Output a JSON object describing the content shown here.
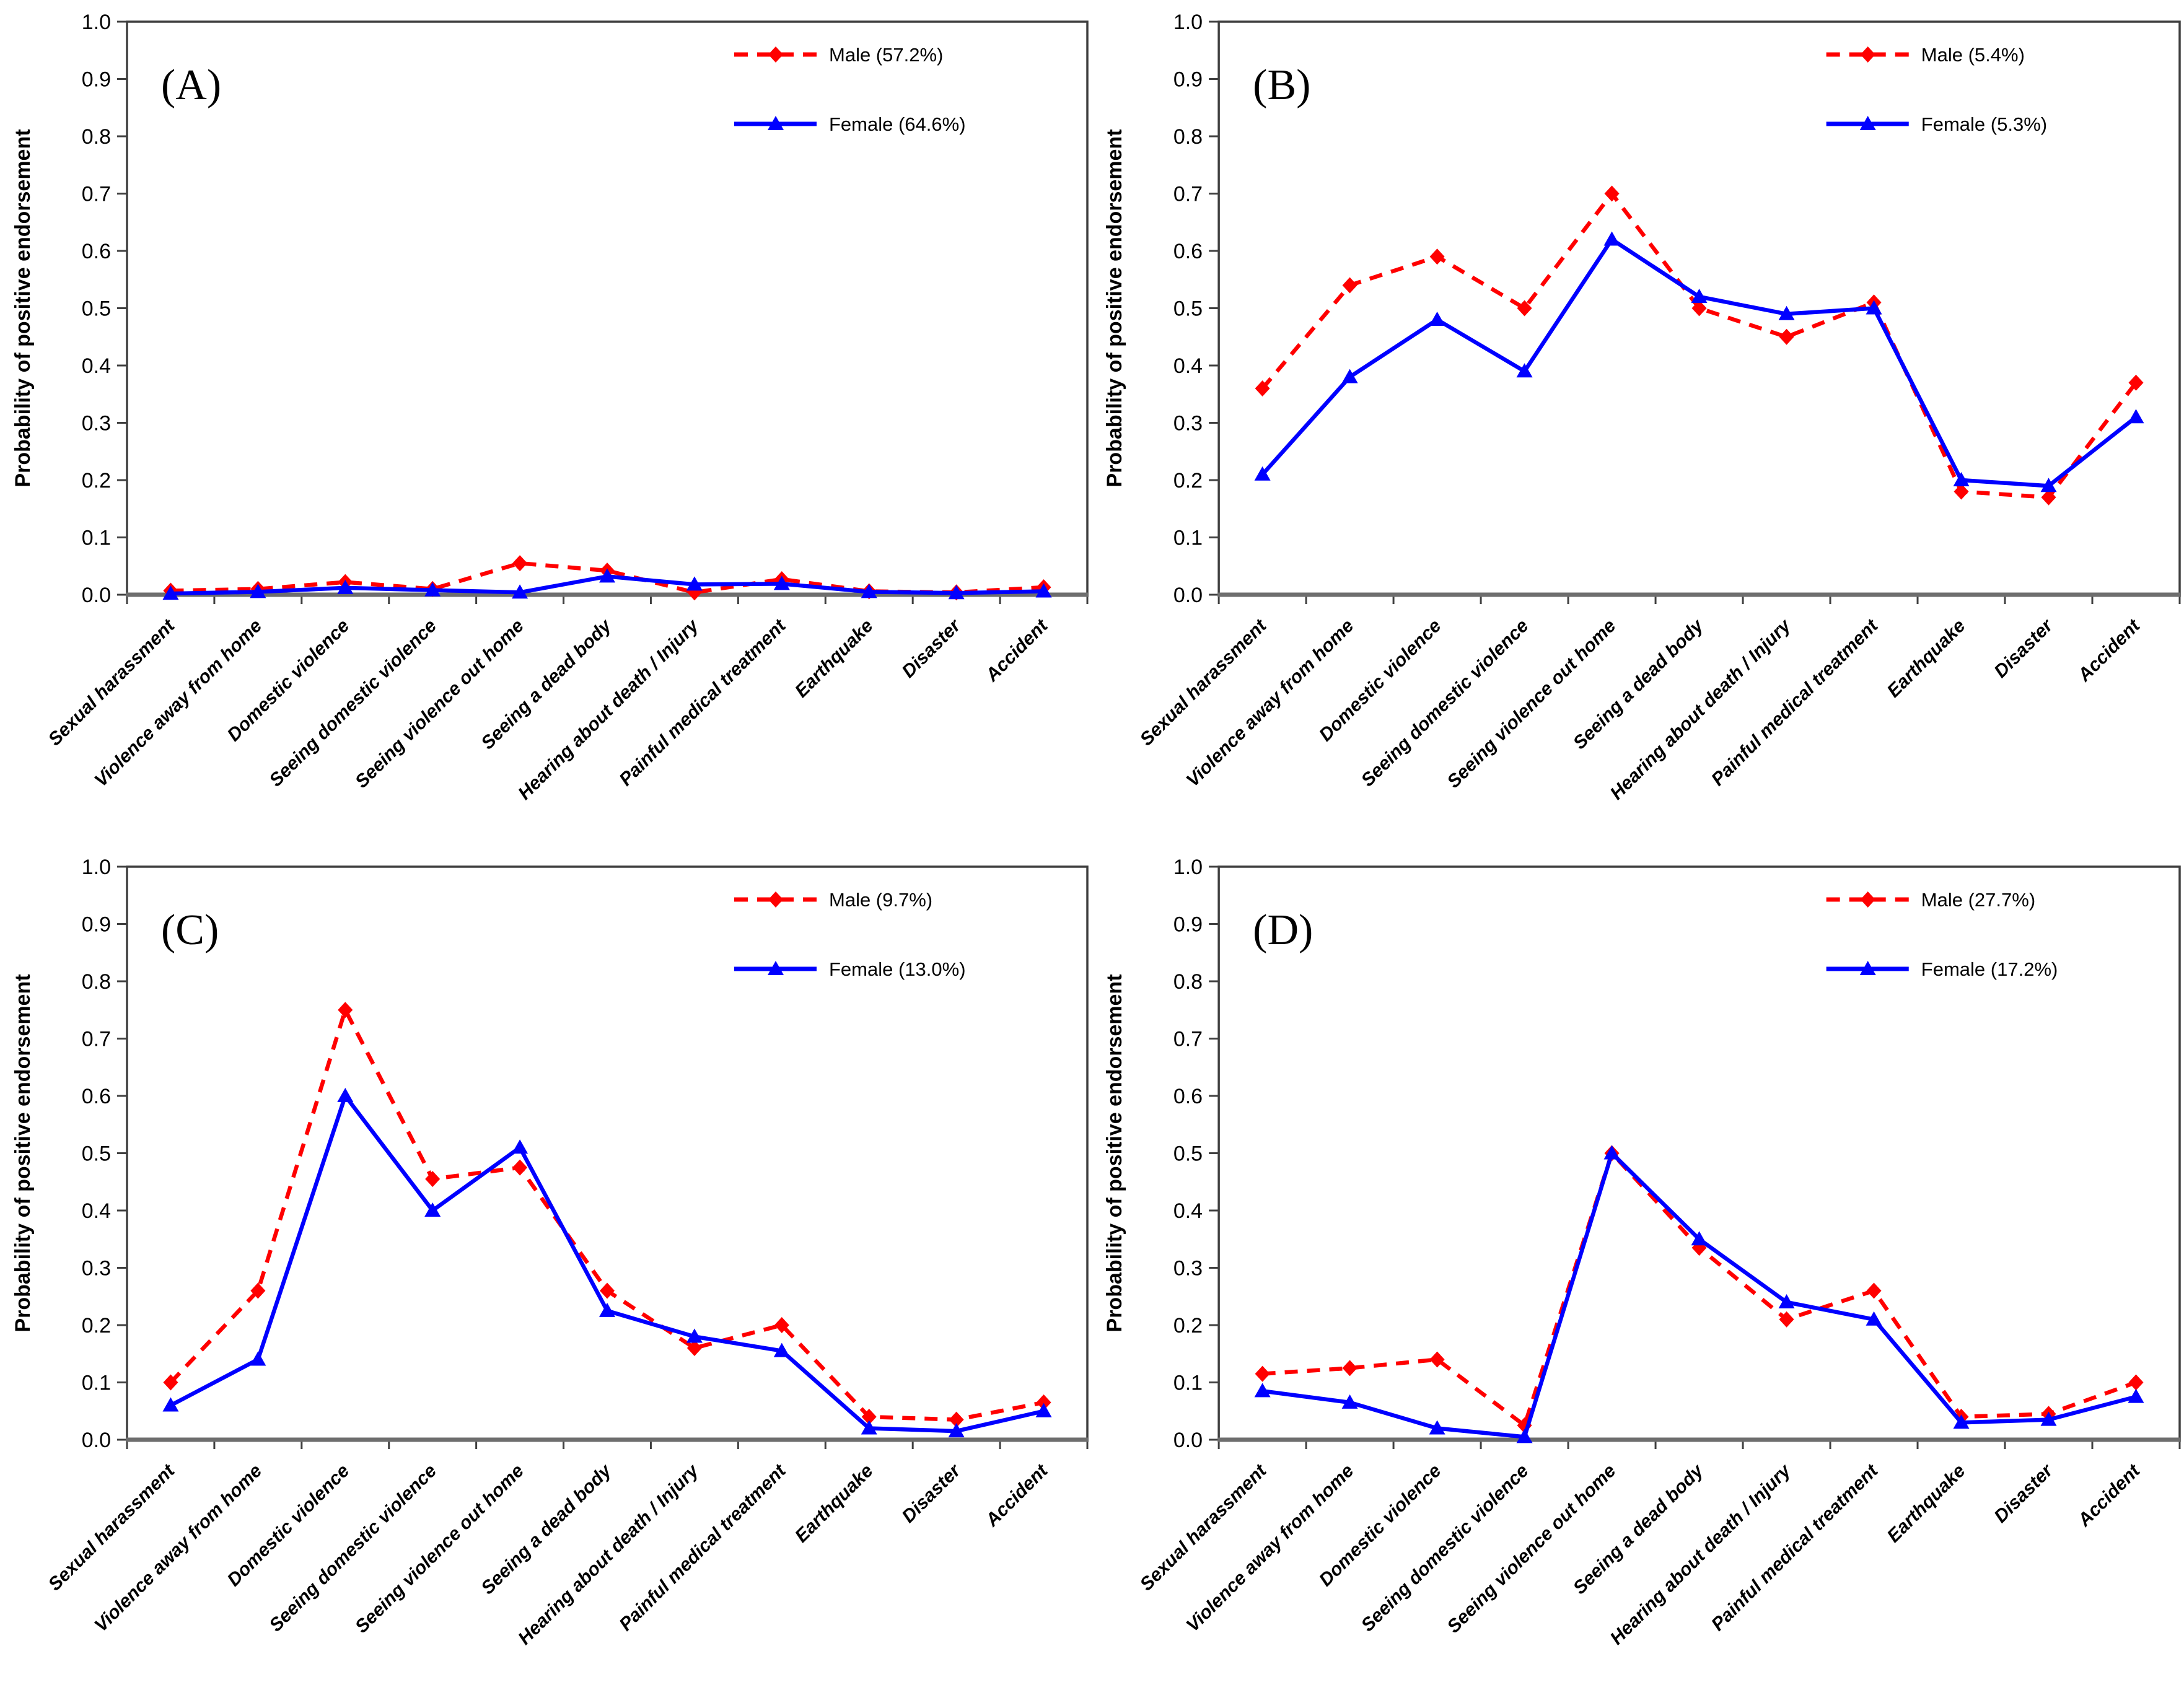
{
  "figure": {
    "background": "#ffffff",
    "grid": "off",
    "legend_position": "top-right-inside"
  },
  "style": {
    "male_color": "#ff0000",
    "female_color": "#0000ff",
    "frame_color": "#3f3f3f",
    "baseline_color": "#6e6e6e",
    "tick_color": "#404040",
    "text_color": "#000000"
  },
  "axes": {
    "y_title": "Probability of positive endorsement",
    "y_min": 0.0,
    "y_max": 1.0,
    "y_step": 0.1,
    "y_tick_labels": [
      "0.0",
      "0.1",
      "0.2",
      "0.3",
      "0.4",
      "0.5",
      "0.6",
      "0.7",
      "0.8",
      "0.9",
      "1.0"
    ]
  },
  "categories": [
    "Sexual harassment",
    "Violence away from home",
    "Domestic violence",
    "Seeing domestic violence",
    "Seeing violence out home",
    "Seeing a dead body",
    "Hearing about death / Injury",
    "Painful medical treatment",
    "Earthquake",
    "Disaster",
    "Accident"
  ],
  "chart_data": [
    {
      "type": "line",
      "id": "A",
      "panel_label": "(A)",
      "ylabel": "Probability of positive endorsement",
      "ylim": [
        0,
        1
      ],
      "series": [
        {
          "name": "Male (57.2%)",
          "color": "#ff0000",
          "line": "dashed",
          "marker": "diamond",
          "values": [
            0.007,
            0.01,
            0.022,
            0.01,
            0.055,
            0.042,
            0.004,
            0.027,
            0.006,
            0.004,
            0.013
          ]
        },
        {
          "name": "Female (64.6%)",
          "color": "#0000ff",
          "line": "solid",
          "marker": "triangle",
          "values": [
            0.002,
            0.005,
            0.012,
            0.008,
            0.004,
            0.032,
            0.018,
            0.019,
            0.005,
            0.003,
            0.006
          ]
        }
      ]
    },
    {
      "type": "line",
      "id": "B",
      "panel_label": "(B)",
      "ylabel": "Probability of positive endorsement",
      "ylim": [
        0,
        1
      ],
      "series": [
        {
          "name": "Male (5.4%)",
          "color": "#ff0000",
          "line": "dashed",
          "marker": "diamond",
          "values": [
            0.36,
            0.54,
            0.59,
            0.5,
            0.7,
            0.5,
            0.45,
            0.51,
            0.18,
            0.17,
            0.37
          ]
        },
        {
          "name": "Female (5.3%)",
          "color": "#0000ff",
          "line": "solid",
          "marker": "triangle",
          "values": [
            0.21,
            0.38,
            0.48,
            0.39,
            0.62,
            0.52,
            0.49,
            0.5,
            0.2,
            0.19,
            0.31
          ]
        }
      ]
    },
    {
      "type": "line",
      "id": "C",
      "panel_label": "(C)",
      "ylabel": "Probability of positive endorsement",
      "ylim": [
        0,
        1
      ],
      "series": [
        {
          "name": "Male (9.7%)",
          "color": "#ff0000",
          "line": "dashed",
          "marker": "diamond",
          "values": [
            0.1,
            0.26,
            0.75,
            0.455,
            0.475,
            0.26,
            0.16,
            0.2,
            0.04,
            0.035,
            0.065
          ]
        },
        {
          "name": "Female (13.0%)",
          "color": "#0000ff",
          "line": "solid",
          "marker": "triangle",
          "values": [
            0.06,
            0.14,
            0.6,
            0.4,
            0.51,
            0.225,
            0.18,
            0.155,
            0.02,
            0.015,
            0.05
          ]
        }
      ]
    },
    {
      "type": "line",
      "id": "D",
      "panel_label": "(D)",
      "ylabel": "Probability of positive endorsement",
      "ylim": [
        0,
        1
      ],
      "series": [
        {
          "name": "Male (27.7%)",
          "color": "#ff0000",
          "line": "dashed",
          "marker": "diamond",
          "values": [
            0.115,
            0.125,
            0.14,
            0.025,
            0.5,
            0.335,
            0.21,
            0.26,
            0.04,
            0.045,
            0.1
          ]
        },
        {
          "name": "Female (17.2%)",
          "color": "#0000ff",
          "line": "solid",
          "marker": "triangle",
          "values": [
            0.085,
            0.065,
            0.02,
            0.005,
            0.5,
            0.35,
            0.24,
            0.21,
            0.03,
            0.035,
            0.075
          ]
        }
      ]
    }
  ]
}
